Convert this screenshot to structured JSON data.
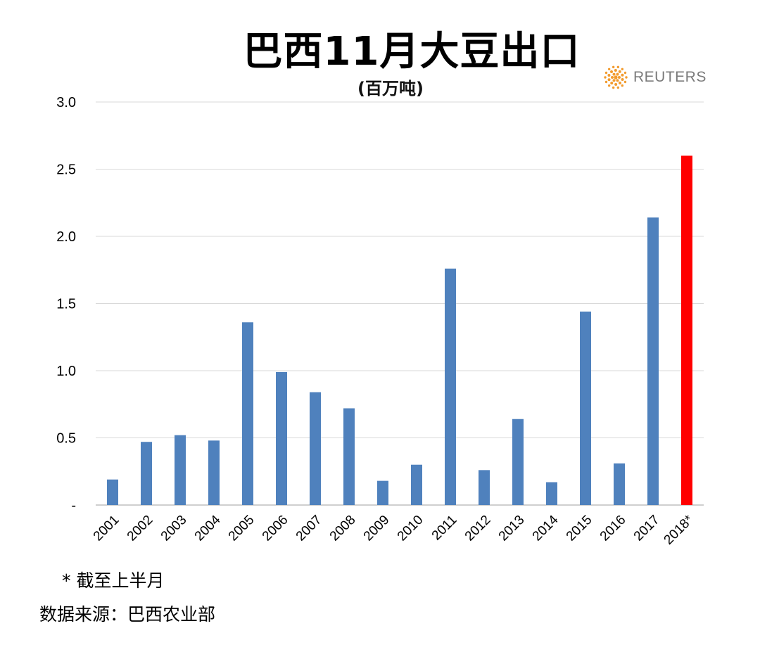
{
  "chart_data": {
    "type": "bar",
    "title": "巴西11月大豆出口",
    "subtitle": "(百万吨)",
    "categories": [
      "2001",
      "2002",
      "2003",
      "2004",
      "2005",
      "2006",
      "2007",
      "2008",
      "2009",
      "2010",
      "2011",
      "2012",
      "2013",
      "2014",
      "2015",
      "2016",
      "2017",
      "2018*"
    ],
    "values": [
      0.19,
      0.47,
      0.52,
      0.48,
      1.36,
      0.99,
      0.84,
      0.72,
      0.18,
      0.3,
      1.76,
      0.26,
      0.64,
      0.17,
      1.44,
      0.31,
      2.14,
      2.6
    ],
    "highlight_index": 17,
    "ylim": [
      0,
      3.0
    ],
    "yticks": [
      0,
      0.5,
      1.0,
      1.5,
      2.0,
      2.5,
      3.0
    ],
    "ytick_labels": [
      "-",
      "0.5",
      "1.0",
      "1.5",
      "2.0",
      "2.5",
      "3.0"
    ],
    "grid": true,
    "legend": "none",
    "colors": {
      "bar": "#4f81bd",
      "highlight": "#ff0000",
      "grid": "#d9d9d9",
      "axis": "#bfbfbf"
    }
  },
  "footnote": "* 截至上半月",
  "source": "数据来源：巴西农业部",
  "logo": {
    "icon": "reuters-dot-logo-icon",
    "text": "REUTERS",
    "color": "#f29b2e"
  }
}
